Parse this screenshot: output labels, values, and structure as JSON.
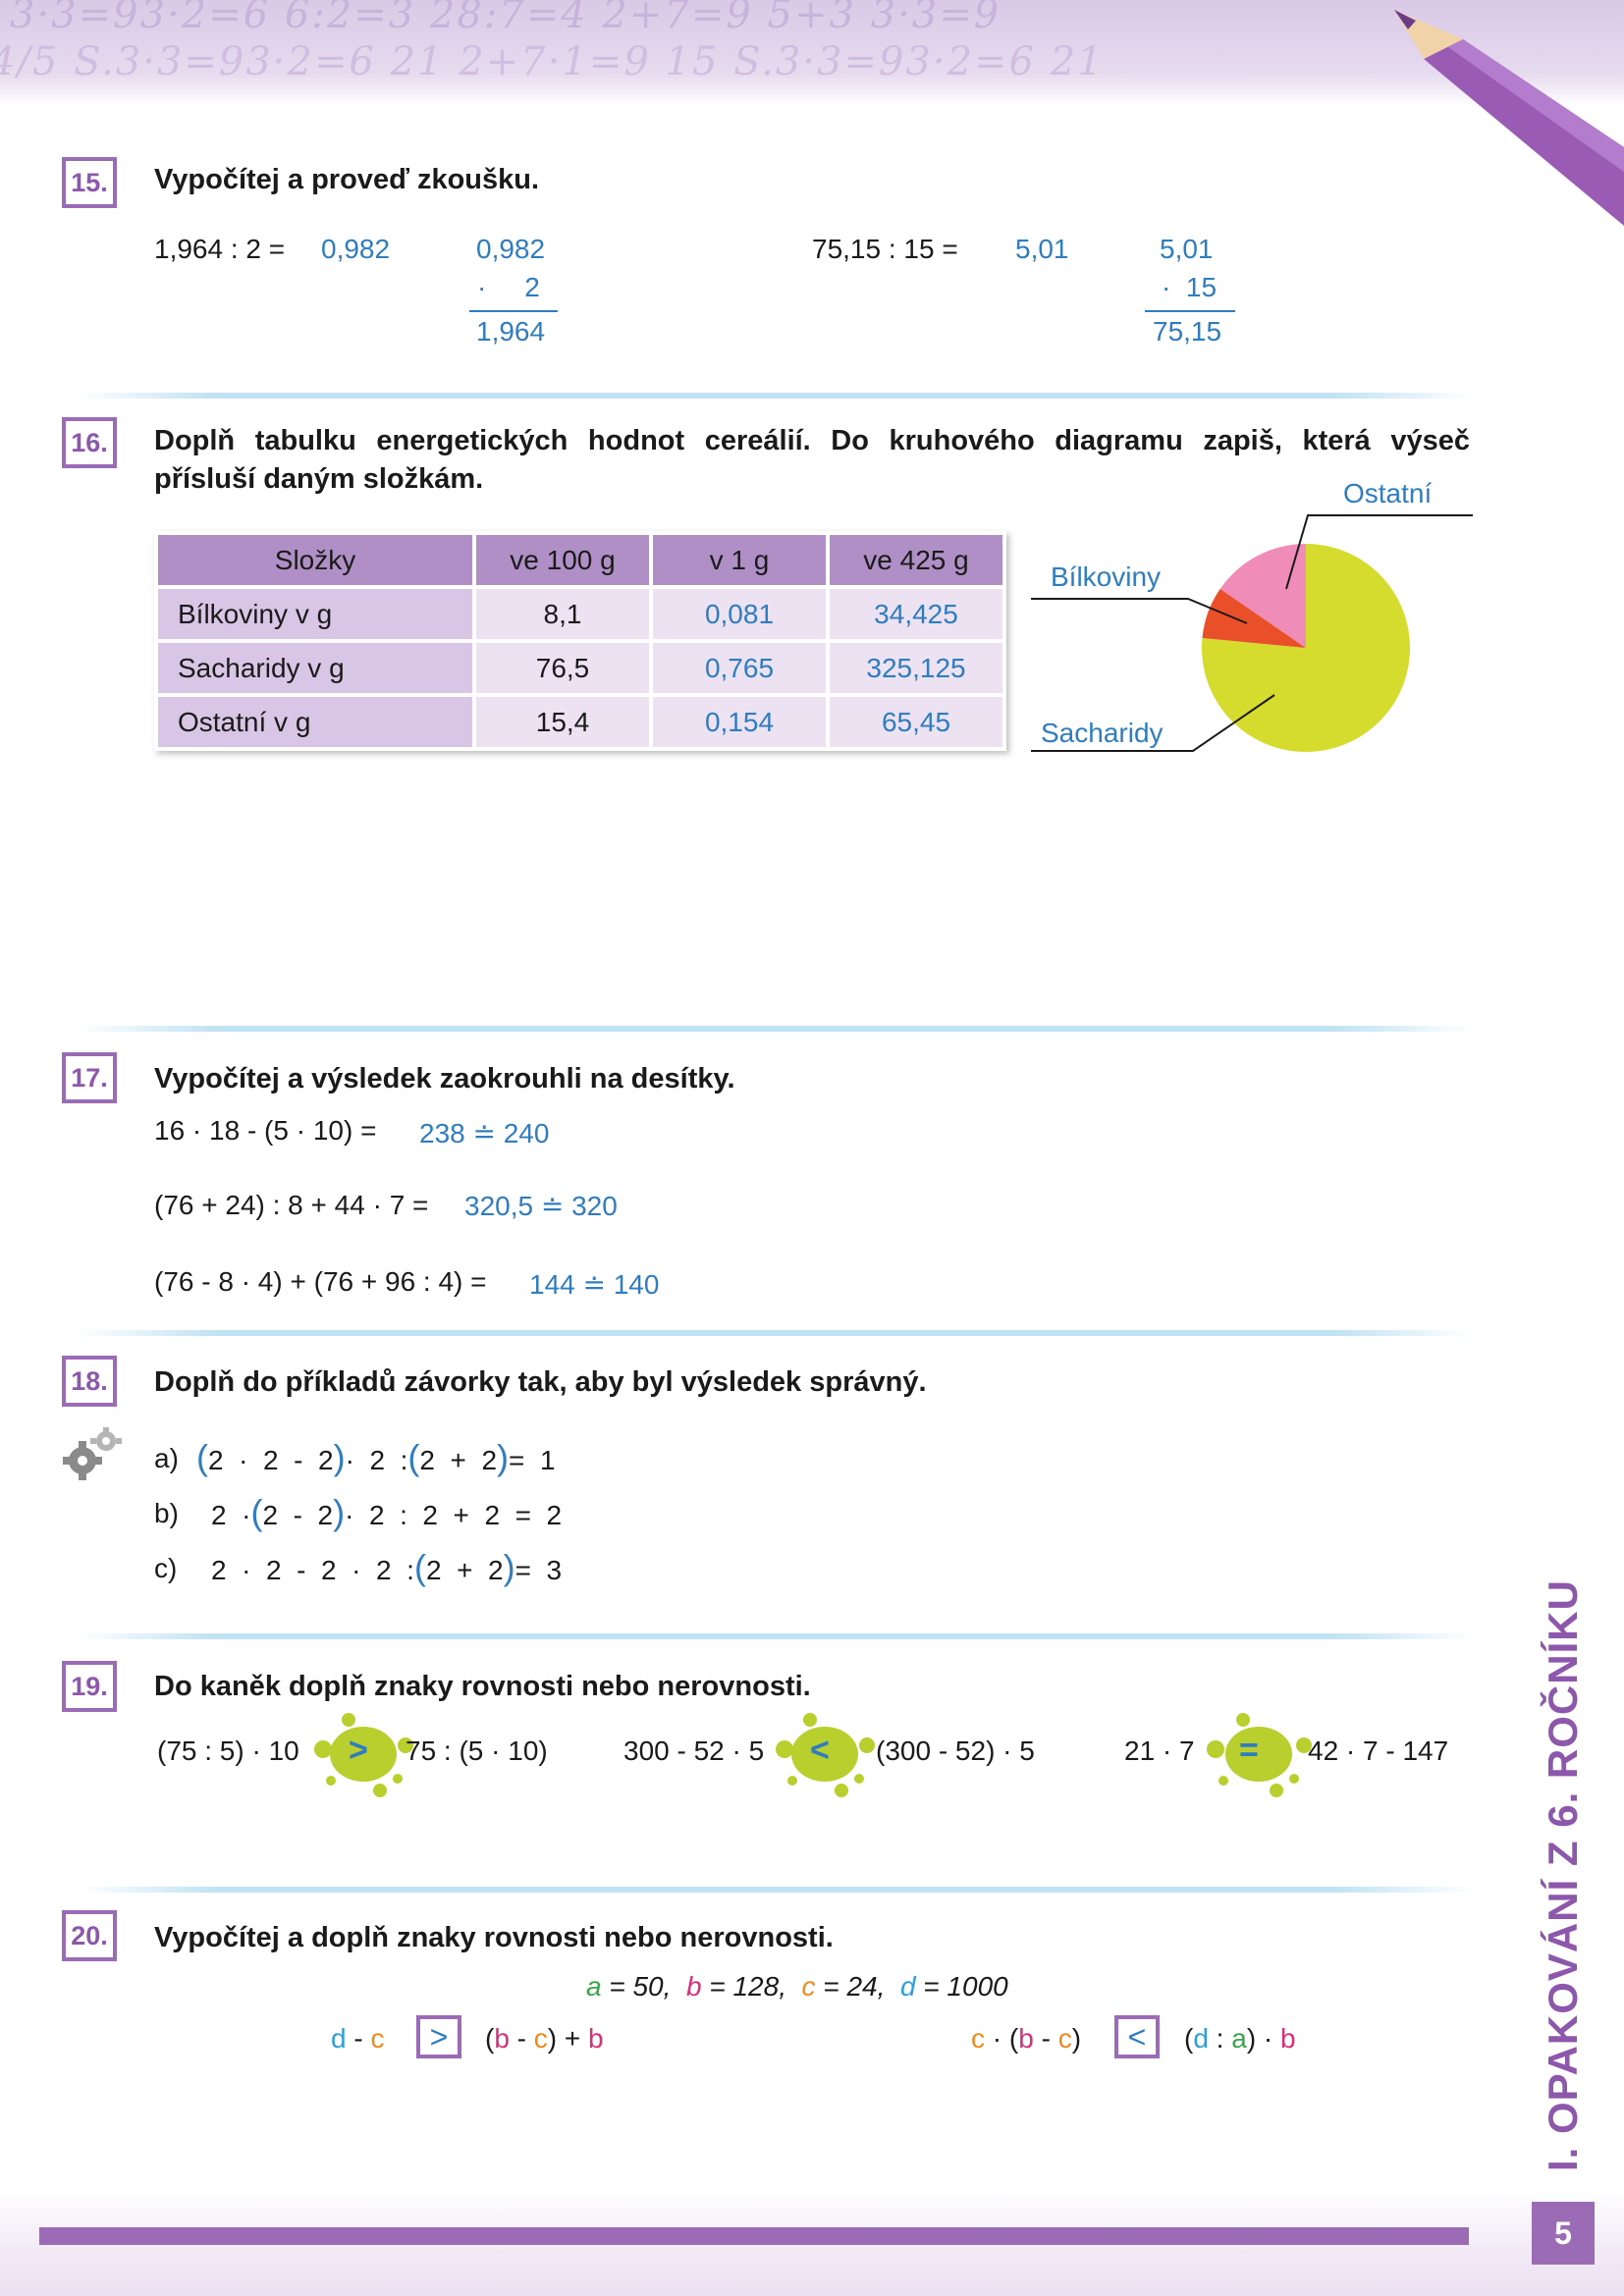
{
  "header": {
    "scribble_1": "3·3=93·2=6  6:2=3  28:7=4  2+7=9  5+3  3·3=9",
    "scribble_2": "4/5  S.3·3=93·2=6  21  2+7·1=9  15  S.3·3=93·2=6  21"
  },
  "ex15": {
    "number": "15.",
    "title": "Vypočítej a proveď zkoušku.",
    "left": {
      "expr": "1,964 : 2 =",
      "answer": "0,982",
      "check_top": "0,982",
      "check_mult": "·     2",
      "check_result": "1,964"
    },
    "right": {
      "expr": "75,15 : 15 =",
      "answer": "5,01",
      "check_top": "5,01",
      "check_mult": "·  15",
      "check_result": "75,15"
    }
  },
  "ex16": {
    "number": "16.",
    "title_line1": "Doplň tabulku energetických hodnot cereálií. Do kruhového diagramu zapiš, která výseč",
    "title_line2": "přísluší daným složkám.",
    "table": {
      "headers": [
        "Složky",
        "ve 100 g",
        "v 1 g",
        "ve 425 g"
      ],
      "rows": [
        [
          "Bílkoviny v g",
          "8,1",
          "0,081",
          "34,425"
        ],
        [
          "Sacharidy v g",
          "76,5",
          "0,765",
          "325,125"
        ],
        [
          "Ostatní v g",
          "15,4",
          "0,154",
          "65,45"
        ]
      ]
    },
    "chart_data": {
      "type": "pie",
      "slices": [
        {
          "label": "Sacharidy",
          "value": 76.5,
          "color": "#d6dc2e"
        },
        {
          "label": "Bílkoviny",
          "value": 8.1,
          "color": "#e9502a"
        },
        {
          "label": "Ostatní",
          "value": 15.4,
          "color": "#ef8cb8"
        }
      ],
      "labels": {
        "ostatni": "Ostatní",
        "bilkoviny": "Bílkoviny",
        "sacharidy": "Sacharidy"
      }
    }
  },
  "ex17": {
    "number": "17.",
    "title": "Vypočítej a výsledek zaokrouhli na desítky.",
    "lines": [
      {
        "expr": "16 · 18 - (5 · 10) =",
        "answer": "238 ≐ 240"
      },
      {
        "expr": "(76 + 24) : 8 + 44 · 7 =",
        "answer": "320,5 ≐ 320"
      },
      {
        "expr": "(76 - 8 · 4) + (76 + 96 : 4) =",
        "answer": "144 ≐ 140"
      }
    ]
  },
  "ex18": {
    "number": "18.",
    "title": "Doplň do příkladů závorky tak, aby byl výsledek správný.",
    "rows": [
      {
        "label": "a)",
        "parts": [
          [
            "(",
            "b"
          ],
          [
            "2  ·  2  -  2",
            "t"
          ],
          [
            ")",
            "b"
          ],
          [
            "·  2  :",
            "t"
          ],
          [
            "(",
            "b"
          ],
          [
            "2  +  2",
            "t"
          ],
          [
            ")",
            "b"
          ],
          [
            "=  1",
            "t"
          ]
        ]
      },
      {
        "label": "b)",
        "parts": [
          [
            "2  ·",
            "t"
          ],
          [
            "(",
            "b"
          ],
          [
            "2  -  2",
            "t"
          ],
          [
            ")",
            "b"
          ],
          [
            "·  2  :  2  +  2  =  2",
            "t"
          ]
        ]
      },
      {
        "label": "c)",
        "parts": [
          [
            "2  ·  2  -  2  ·  2  :",
            "t"
          ],
          [
            "(",
            "b"
          ],
          [
            "2  +  2",
            "t"
          ],
          [
            ")",
            "b"
          ],
          [
            "=  3",
            "t"
          ]
        ]
      }
    ]
  },
  "ex19": {
    "number": "19.",
    "title": "Do kaněk doplň znaky rovnosti nebo nerovnosti.",
    "items": [
      {
        "left": "(75 : 5) · 10",
        "sign": ">",
        "right": "75 : (5 · 10)"
      },
      {
        "left": "300 - 52 · 5",
        "sign": "<",
        "right": "(300 - 52) · 5"
      },
      {
        "left": "21 · 7",
        "sign": "=",
        "right": "42 · 7 - 147"
      }
    ]
  },
  "ex20": {
    "number": "20.",
    "title": "Vypočítej a doplň znaky rovnosti nebo nerovnosti.",
    "vars": {
      "a": "a",
      "a_val": " = 50,",
      "b": "b",
      "b_val": " = 128,",
      "c": "c",
      "c_val": " = 24,",
      "d": "d",
      "d_val": " = 1000"
    },
    "left": {
      "sign": ">"
    },
    "right": {
      "sign": "<"
    }
  },
  "side_title": "I. OPAKOVÁNÍ Z 6. ROČNÍKU",
  "page_number": "5"
}
